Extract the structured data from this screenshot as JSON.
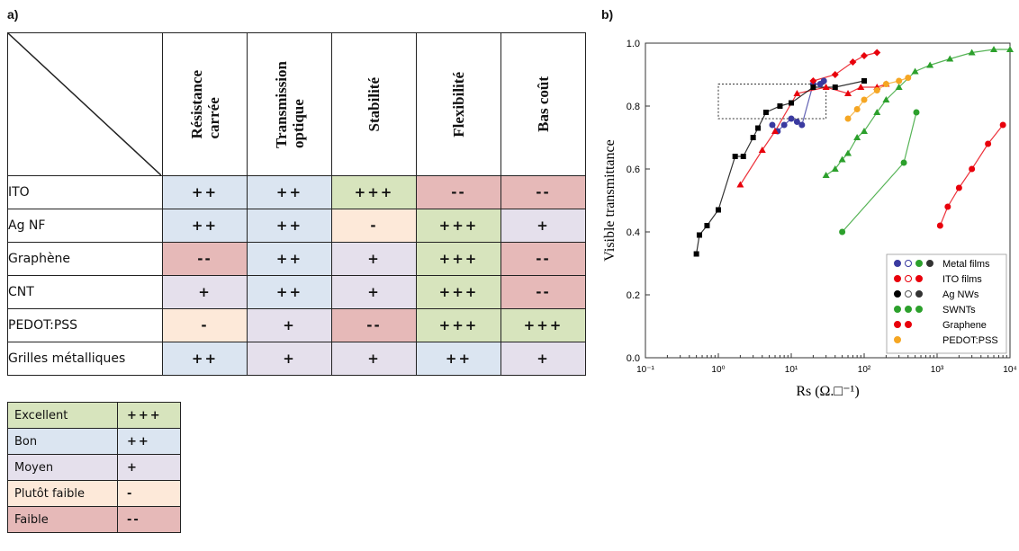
{
  "panel_a_label": "a)",
  "panel_b_label": "b)",
  "table": {
    "columns": [
      "Résistance\ncarrée",
      "Transmission\noptique",
      "Stabilité",
      "Flexibilité",
      "Bas coût"
    ],
    "rows": [
      {
        "label": "ITO",
        "cells": [
          {
            "v": "++",
            "lvl": "bon"
          },
          {
            "v": "++",
            "lvl": "bon"
          },
          {
            "v": "+++",
            "lvl": "excellent"
          },
          {
            "v": "--",
            "lvl": "faible"
          },
          {
            "v": "--",
            "lvl": "faible"
          }
        ]
      },
      {
        "label": "Ag NF",
        "cells": [
          {
            "v": "++",
            "lvl": "bon"
          },
          {
            "v": "++",
            "lvl": "bon"
          },
          {
            "v": "-",
            "lvl": "plutot"
          },
          {
            "v": "+++",
            "lvl": "excellent"
          },
          {
            "v": "+",
            "lvl": "moyen"
          }
        ]
      },
      {
        "label": "Graphène",
        "cells": [
          {
            "v": "--",
            "lvl": "faible"
          },
          {
            "v": "++",
            "lvl": "bon"
          },
          {
            "v": "+",
            "lvl": "moyen"
          },
          {
            "v": "+++",
            "lvl": "excellent"
          },
          {
            "v": "--",
            "lvl": "faible"
          }
        ]
      },
      {
        "label": "CNT",
        "cells": [
          {
            "v": "+",
            "lvl": "moyen"
          },
          {
            "v": "++",
            "lvl": "bon"
          },
          {
            "v": "+",
            "lvl": "moyen"
          },
          {
            "v": "+++",
            "lvl": "excellent"
          },
          {
            "v": "--",
            "lvl": "faible"
          }
        ]
      },
      {
        "label": "PEDOT:PSS",
        "cells": [
          {
            "v": "-",
            "lvl": "plutot"
          },
          {
            "v": "+",
            "lvl": "moyen"
          },
          {
            "v": "--",
            "lvl": "faible"
          },
          {
            "v": "+++",
            "lvl": "excellent"
          },
          {
            "v": "+++",
            "lvl": "excellent"
          }
        ]
      },
      {
        "label": "Grilles métalliques",
        "cells": [
          {
            "v": "++",
            "lvl": "bon"
          },
          {
            "v": "+",
            "lvl": "moyen"
          },
          {
            "v": "+",
            "lvl": "moyen"
          },
          {
            "v": "++",
            "lvl": "bon"
          },
          {
            "v": "+",
            "lvl": "moyen"
          }
        ]
      }
    ]
  },
  "legend_table": [
    {
      "name": "Excellent",
      "symbol": "+++",
      "lvl": "excellent"
    },
    {
      "name": "Bon",
      "symbol": "++",
      "lvl": "bon"
    },
    {
      "name": "Moyen",
      "symbol": "+",
      "lvl": "moyen"
    },
    {
      "name": "Plutôt faible",
      "symbol": "-",
      "lvl": "plutot"
    },
    {
      "name": "Faible",
      "symbol": "--",
      "lvl": "faible"
    }
  ],
  "colors": {
    "excellent": "#d7e4bd",
    "bon": "#dbe5f1",
    "moyen": "#e5e0ec",
    "plutot": "#fde9d9",
    "faible": "#e6b9b8"
  },
  "chart_data": {
    "type": "scatter",
    "title": "",
    "xlabel": "Rs (Ω.□⁻¹)",
    "ylabel": "Visible transmittance",
    "xscale": "log",
    "xlim": [
      0.1,
      10000
    ],
    "ylim": [
      0.0,
      1.0
    ],
    "x_ticks": [
      "10⁻¹",
      "10⁰",
      "10¹",
      "10²",
      "10³",
      "10⁴"
    ],
    "y_ticks": [
      "0.0",
      "0.2",
      "0.4",
      "0.6",
      "0.8",
      "1.0"
    ],
    "legend_position": "bottom-right",
    "legend": [
      "Metal films",
      "ITO films",
      "Ag NWs",
      "SWNTs",
      "Graphene",
      "PEDOT:PSS"
    ],
    "series": [
      {
        "name": "Metal films",
        "color": "#3a3aa0",
        "points": [
          [
            5.5,
            0.74
          ],
          [
            6.5,
            0.72
          ],
          [
            8,
            0.74
          ],
          [
            10,
            0.76
          ],
          [
            12,
            0.75
          ],
          [
            14,
            0.74
          ],
          [
            20,
            0.87
          ],
          [
            25,
            0.87
          ],
          [
            28,
            0.88
          ]
        ]
      },
      {
        "name": "Metal films",
        "color": "#2ca02c",
        "points": [
          [
            50,
            0.4
          ],
          [
            350,
            0.62
          ],
          [
            520,
            0.78
          ]
        ]
      },
      {
        "name": "ITO films",
        "color": "#e8000b",
        "points": [
          [
            2,
            0.55
          ],
          [
            4,
            0.66
          ],
          [
            6,
            0.72
          ],
          [
            12,
            0.84
          ],
          [
            30,
            0.86
          ],
          [
            60,
            0.84
          ],
          [
            90,
            0.86
          ],
          [
            150,
            0.86
          ],
          [
            200,
            0.87
          ]
        ]
      },
      {
        "name": "Ag NWs",
        "color": "#000000",
        "points": [
          [
            0.5,
            0.33
          ],
          [
            0.55,
            0.39
          ],
          [
            0.7,
            0.42
          ],
          [
            1,
            0.47
          ],
          [
            1.7,
            0.64
          ],
          [
            2.2,
            0.64
          ],
          [
            3,
            0.7
          ],
          [
            3.5,
            0.73
          ],
          [
            4.5,
            0.78
          ],
          [
            7,
            0.8
          ],
          [
            10,
            0.81
          ],
          [
            20,
            0.86
          ],
          [
            40,
            0.86
          ],
          [
            100,
            0.88
          ]
        ]
      },
      {
        "name": "SWNTs",
        "color": "#2ca02c",
        "points": [
          [
            30,
            0.58
          ],
          [
            40,
            0.6
          ],
          [
            50,
            0.63
          ],
          [
            60,
            0.65
          ],
          [
            80,
            0.7
          ],
          [
            100,
            0.72
          ],
          [
            150,
            0.78
          ],
          [
            200,
            0.82
          ],
          [
            300,
            0.86
          ],
          [
            500,
            0.91
          ],
          [
            800,
            0.93
          ],
          [
            1500,
            0.95
          ],
          [
            3000,
            0.97
          ],
          [
            6000,
            0.98
          ],
          [
            10000,
            0.98
          ]
        ]
      },
      {
        "name": "Graphene",
        "color": "#e8000b",
        "points": [
          [
            1100,
            0.42
          ],
          [
            1400,
            0.48
          ],
          [
            2000,
            0.54
          ],
          [
            3000,
            0.6
          ],
          [
            5000,
            0.68
          ],
          [
            8000,
            0.74
          ]
        ]
      },
      {
        "name": "Graphene",
        "color": "#e8000b",
        "points": [
          [
            20,
            0.88
          ],
          [
            40,
            0.9
          ],
          [
            70,
            0.94
          ],
          [
            100,
            0.96
          ],
          [
            150,
            0.97
          ]
        ]
      },
      {
        "name": "PEDOT:PSS",
        "color": "#f5a623",
        "points": [
          [
            60,
            0.76
          ],
          [
            80,
            0.79
          ],
          [
            100,
            0.82
          ],
          [
            150,
            0.85
          ],
          [
            200,
            0.87
          ],
          [
            300,
            0.88
          ],
          [
            400,
            0.89
          ]
        ]
      }
    ]
  }
}
